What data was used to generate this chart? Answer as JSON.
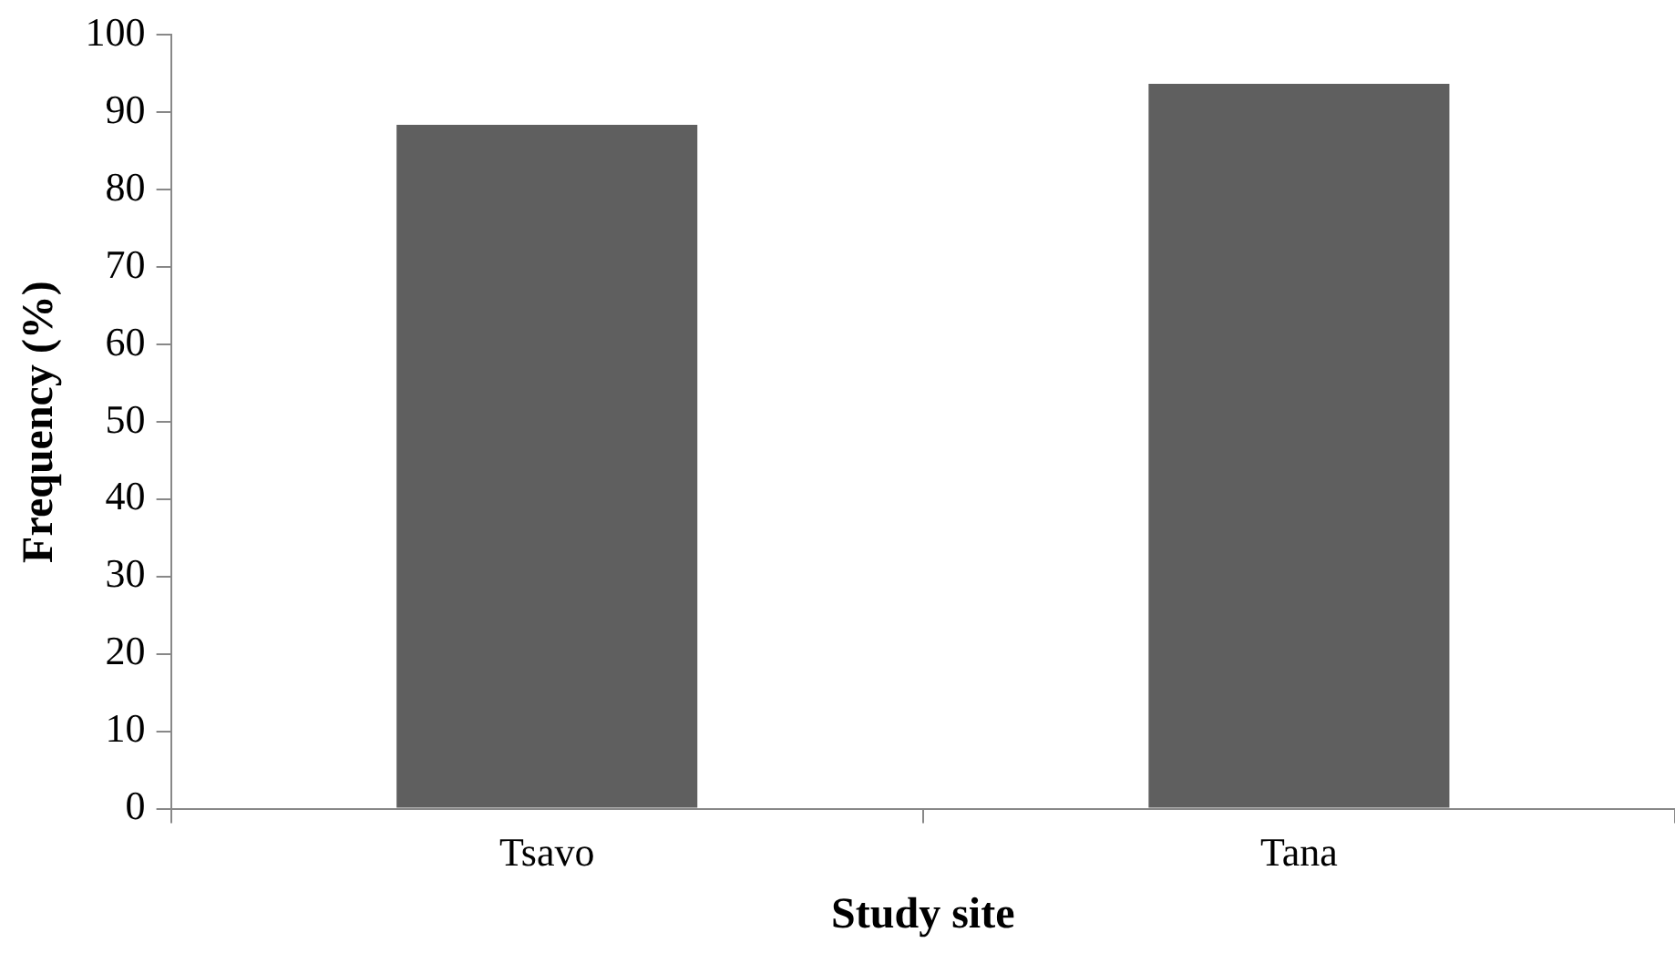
{
  "chart_data": {
    "type": "bar",
    "xlabel": "Study site",
    "ylabel": "Frequency (%)",
    "categories": [
      "Tsavo",
      "Tana"
    ],
    "values": [
      88.4,
      93.7
    ],
    "color": "#5f5f5f",
    "ylim": [
      0,
      100
    ],
    "yticks": [
      0,
      10,
      20,
      30,
      40,
      50,
      60,
      70,
      80,
      90,
      100
    ],
    "grid": false,
    "legend": false
  }
}
